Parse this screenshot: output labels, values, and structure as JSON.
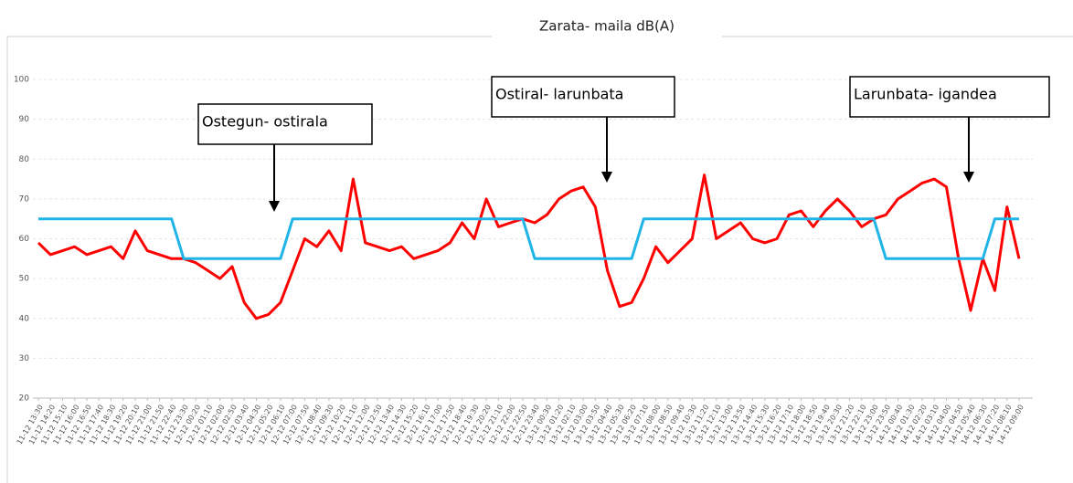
{
  "chart_data": {
    "type": "line",
    "title": "Zarata- maila dB(A)",
    "categories": [
      "11-12 13:30",
      "11-12 14:20",
      "11-12 15:10",
      "11-12 16:00",
      "11-12 16:50",
      "11-12 17:40",
      "11-12 18:30",
      "11-12 19:20",
      "11-12 20:10",
      "11-12 21:00",
      "11-12 21:50",
      "11-12 22:40",
      "11-12 23:30",
      "12-12 00:20",
      "12-12 01:10",
      "12-12 02:00",
      "12-12 02:50",
      "12-12 03:40",
      "12-12 04:30",
      "12-12 05:20",
      "12-12 06:10",
      "12-12 07:00",
      "12-12 07:50",
      "12-12 08:40",
      "12-12 09:30",
      "12-12 10:20",
      "12-12 11:10",
      "12-12 12:00",
      "12-12 12:50",
      "12-12 13:40",
      "12-12 14:30",
      "12-12 15:20",
      "12-12 16:10",
      "12-12 17:00",
      "12-12 17:50",
      "12-12 18:40",
      "12-12 19:30",
      "12-12 20:20",
      "12-12 21:10",
      "12-12 22:00",
      "12-12 22:50",
      "12-12 23:40",
      "13-12 00:30",
      "13-12 01:20",
      "13-12 02:10",
      "13-12 03:00",
      "13-12 03:50",
      "13-12 04:40",
      "13-12 05:30",
      "13-12 06:20",
      "13-12 07:10",
      "13-12 08:00",
      "13-12 08:50",
      "13-12 09:40",
      "13-12 10:30",
      "13-12 11:20",
      "13-12 12:10",
      "13-12 13:00",
      "13-12 13:50",
      "13-12 14:40",
      "13-12 15:30",
      "13-12 16:20",
      "13-12 17:10",
      "13-12 18:00",
      "13-12 18:50",
      "13-12 19:40",
      "13-12 20:30",
      "13-12 21:20",
      "13-12 22:10",
      "13-12 23:00",
      "13-12 23:50",
      "14-12 00:40",
      "14-12 01:30",
      "14-12 02:20",
      "14-12 03:10",
      "14-12 04:00",
      "14-12 04:50",
      "14-12 05:40",
      "14-12 06:30",
      "14-12 07:20",
      "14-12 08:10",
      "14-12 09:00"
    ],
    "series": [
      {
        "color": "#ff0000",
        "values": [
          59,
          56,
          57,
          58,
          56,
          57,
          58,
          55,
          62,
          57,
          56,
          55,
          55,
          54,
          52,
          50,
          53,
          44,
          40,
          41,
          44,
          52,
          60,
          58,
          62,
          57,
          75,
          59,
          58,
          57,
          58,
          55,
          56,
          57,
          59,
          64,
          60,
          70,
          63,
          64,
          65,
          64,
          66,
          70,
          72,
          73,
          68,
          52,
          43,
          44,
          50,
          58,
          54,
          57,
          60,
          76,
          60,
          62,
          64,
          60,
          59,
          60,
          66,
          67,
          63,
          67,
          70,
          67,
          63,
          65,
          66,
          70,
          72,
          74,
          75,
          73,
          55,
          42,
          55,
          47,
          68,
          55
        ]
      },
      {
        "color": "#1fb4e8",
        "values": [
          65,
          65,
          65,
          65,
          65,
          65,
          65,
          65,
          65,
          65,
          65,
          65,
          55,
          55,
          55,
          55,
          55,
          55,
          55,
          55,
          55,
          65,
          65,
          65,
          65,
          65,
          65,
          65,
          65,
          65,
          65,
          65,
          65,
          65,
          65,
          65,
          65,
          65,
          65,
          65,
          65,
          55,
          55,
          55,
          55,
          55,
          55,
          55,
          55,
          55,
          65,
          65,
          65,
          65,
          65,
          65,
          65,
          65,
          65,
          65,
          65,
          65,
          65,
          65,
          65,
          65,
          65,
          65,
          65,
          65,
          55,
          55,
          55,
          55,
          55,
          55,
          55,
          55,
          55,
          65,
          65,
          65
        ]
      }
    ],
    "ylim": [
      20,
      100
    ],
    "yticks": [
      20,
      30,
      40,
      50,
      60,
      70,
      80,
      90,
      100
    ],
    "grid": true,
    "annotations": [
      "Ostegun- ostirala",
      "Ostiral- larunbata",
      "Larunbata- igandea"
    ]
  }
}
